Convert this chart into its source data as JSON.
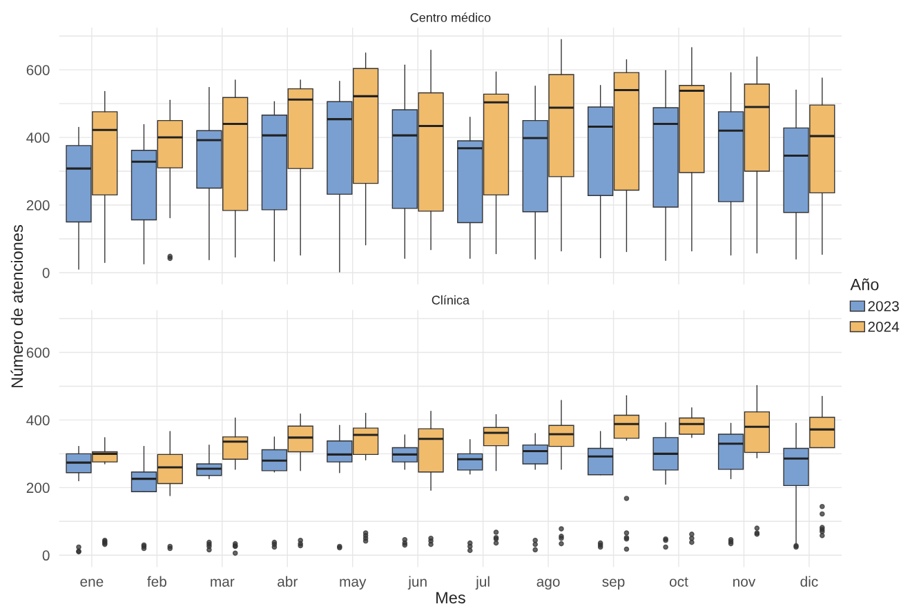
{
  "chart_data": [
    {
      "type": "box",
      "title": "Centro médico",
      "ylabel": "Número de atenciones",
      "legend_title": "Año",
      "legend": "right",
      "grid": true,
      "tick_labels": "y",
      "ylim": [
        -35,
        725
      ],
      "yticks": [
        0,
        {
          "value": 100,
          "label": null
        },
        200,
        {
          "value": 300,
          "label": null
        },
        400,
        {
          "value": 500,
          "label": null
        },
        600,
        {
          "value": 700,
          "label": null
        }
      ],
      "series": [
        {
          "name": "2023",
          "color": "#7aa0d2",
          "boxes": [
            {
              "low": 10,
              "q1": 150,
              "median": 308,
              "q3": 376,
              "high": 430
            },
            {
              "low": 26,
              "q1": 156,
              "median": 328,
              "q3": 362,
              "high": 438
            },
            {
              "low": 38,
              "q1": 250,
              "median": 392,
              "q3": 420,
              "high": 548
            },
            {
              "low": 34,
              "q1": 186,
              "median": 406,
              "q3": 466,
              "high": 506
            },
            {
              "low": 2,
              "q1": 232,
              "median": 454,
              "q3": 506,
              "high": 566
            },
            {
              "low": 42,
              "q1": 190,
              "median": 406,
              "q3": 482,
              "high": 614
            },
            {
              "low": 42,
              "q1": 148,
              "median": 368,
              "q3": 390,
              "high": 460
            },
            {
              "low": 40,
              "q1": 180,
              "median": 398,
              "q3": 450,
              "high": 552
            },
            {
              "low": 44,
              "q1": 228,
              "median": 432,
              "q3": 490,
              "high": 554
            },
            {
              "low": 36,
              "q1": 194,
              "median": 440,
              "q3": 488,
              "high": 598
            },
            {
              "low": 52,
              "q1": 210,
              "median": 420,
              "q3": 476,
              "high": 592
            },
            {
              "low": 40,
              "q1": 178,
              "median": 346,
              "q3": 428,
              "high": 540
            }
          ]
        },
        {
          "name": "2024",
          "color": "#f0bb6b",
          "boxes": [
            {
              "low": 30,
              "q1": 230,
              "median": 422,
              "q3": 476,
              "high": 536
            },
            {
              "low": 162,
              "q1": 310,
              "median": 400,
              "q3": 450,
              "high": 510,
              "outliers": [
                48,
                42
              ]
            },
            {
              "low": 46,
              "q1": 184,
              "median": 440,
              "q3": 518,
              "high": 570
            },
            {
              "low": 52,
              "q1": 308,
              "median": 512,
              "q3": 544,
              "high": 570
            },
            {
              "low": 82,
              "q1": 264,
              "median": 522,
              "q3": 604,
              "high": 650
            },
            {
              "low": 68,
              "q1": 182,
              "median": 434,
              "q3": 532,
              "high": 658
            },
            {
              "low": 56,
              "q1": 230,
              "median": 504,
              "q3": 528,
              "high": 594
            },
            {
              "low": 64,
              "q1": 284,
              "median": 488,
              "q3": 586,
              "high": 690
            },
            {
              "low": 62,
              "q1": 244,
              "median": 540,
              "q3": 592,
              "high": 630
            },
            {
              "low": 64,
              "q1": 296,
              "median": 538,
              "q3": 554,
              "high": 666
            },
            {
              "low": 58,
              "q1": 300,
              "median": 490,
              "q3": 558,
              "high": 638
            },
            {
              "low": 54,
              "q1": 236,
              "median": 404,
              "q3": 496,
              "high": 576
            }
          ]
        }
      ]
    },
    {
      "type": "box",
      "title": "Clínica",
      "xlabel": "Mes",
      "grid": true,
      "categories": [
        "ene",
        "feb",
        "mar",
        "abr",
        "may",
        "jun",
        "jul",
        "ago",
        "sep",
        "oct",
        "nov",
        "dic"
      ],
      "ylim": [
        -35,
        725
      ],
      "yticks": [
        0,
        {
          "value": 100,
          "label": null
        },
        200,
        {
          "value": 300,
          "label": null
        },
        400,
        {
          "value": 500,
          "label": null
        },
        600,
        {
          "value": 700,
          "label": null
        }
      ],
      "series": [
        {
          "name": "2023",
          "color": "#7aa0d2",
          "boxes": [
            {
              "low": 220,
              "q1": 244,
              "median": 274,
              "q3": 300,
              "high": 322,
              "outliers": [
                24,
                12,
                10
              ]
            },
            {
              "low": 188,
              "q1": 188,
              "median": 226,
              "q3": 246,
              "high": 322,
              "outliers": [
                30,
                26,
                20
              ]
            },
            {
              "low": 226,
              "q1": 236,
              "median": 256,
              "q3": 270,
              "high": 326,
              "outliers": [
                38,
                32,
                26,
                16
              ]
            },
            {
              "low": 246,
              "q1": 250,
              "median": 280,
              "q3": 312,
              "high": 350,
              "outliers": [
                38,
                32,
                24
              ]
            },
            {
              "low": 244,
              "q1": 276,
              "median": 298,
              "q3": 338,
              "high": 384,
              "outliers": [
                26,
                22
              ]
            },
            {
              "low": 254,
              "q1": 276,
              "median": 298,
              "q3": 318,
              "high": 356,
              "outliers": [
                46,
                36,
                30
              ]
            },
            {
              "low": 240,
              "q1": 252,
              "median": 284,
              "q3": 300,
              "high": 342,
              "outliers": [
                36,
                26,
                14
              ]
            },
            {
              "low": 254,
              "q1": 270,
              "median": 308,
              "q3": 326,
              "high": 360,
              "outliers": [
                44,
                32,
                16
              ]
            },
            {
              "low": 238,
              "q1": 238,
              "median": 292,
              "q3": 316,
              "high": 366,
              "outliers": [
                36,
                30,
                24
              ]
            },
            {
              "low": 210,
              "q1": 252,
              "median": 300,
              "q3": 348,
              "high": 392,
              "outliers": [
                48,
                44,
                24
              ]
            },
            {
              "low": 226,
              "q1": 254,
              "median": 330,
              "q3": 358,
              "high": 390,
              "outliers": [
                46,
                40,
                34
              ]
            },
            {
              "low": 30,
              "q1": 206,
              "median": 286,
              "q3": 316,
              "high": 390,
              "outliers": [
                28,
                24
              ]
            }
          ]
        },
        {
          "name": "2024",
          "color": "#f0bb6b",
          "boxes": [
            {
              "low": 270,
              "q1": 276,
              "median": 300,
              "q3": 306,
              "high": 348,
              "outliers": [
                44,
                40,
                36,
                32
              ]
            },
            {
              "low": 176,
              "q1": 212,
              "median": 260,
              "q3": 298,
              "high": 366,
              "outliers": [
                26,
                20
              ]
            },
            {
              "low": 254,
              "q1": 284,
              "median": 336,
              "q3": 350,
              "high": 406,
              "outliers": [
                34,
                28,
                26,
                6
              ]
            },
            {
              "low": 250,
              "q1": 306,
              "median": 348,
              "q3": 382,
              "high": 418,
              "outliers": [
                44,
                34,
                28
              ]
            },
            {
              "low": 282,
              "q1": 298,
              "median": 356,
              "q3": 376,
              "high": 420,
              "outliers": [
                66,
                58,
                50,
                42
              ]
            },
            {
              "low": 192,
              "q1": 246,
              "median": 344,
              "q3": 374,
              "high": 426,
              "outliers": [
                50,
                42,
                32
              ]
            },
            {
              "low": 250,
              "q1": 324,
              "median": 362,
              "q3": 378,
              "high": 416,
              "outliers": [
                68,
                52,
                48,
                36
              ]
            },
            {
              "low": 254,
              "q1": 322,
              "median": 358,
              "q3": 384,
              "high": 458,
              "outliers": [
                78,
                56,
                50,
                34
              ]
            },
            {
              "low": 340,
              "q1": 346,
              "median": 388,
              "q3": 414,
              "high": 472,
              "outliers": [
                168,
                66,
                52,
                48,
                18
              ]
            },
            {
              "low": 348,
              "q1": 358,
              "median": 388,
              "q3": 406,
              "high": 436,
              "outliers": [
                62,
                50,
                38
              ]
            },
            {
              "low": 288,
              "q1": 304,
              "median": 380,
              "q3": 424,
              "high": 502,
              "outliers": [
                80,
                66,
                62
              ]
            },
            {
              "low": 318,
              "q1": 318,
              "median": 372,
              "q3": 408,
              "high": 470,
              "outliers": [
                144,
                122,
                82,
                76,
                70,
                58
              ]
            }
          ]
        }
      ]
    }
  ]
}
